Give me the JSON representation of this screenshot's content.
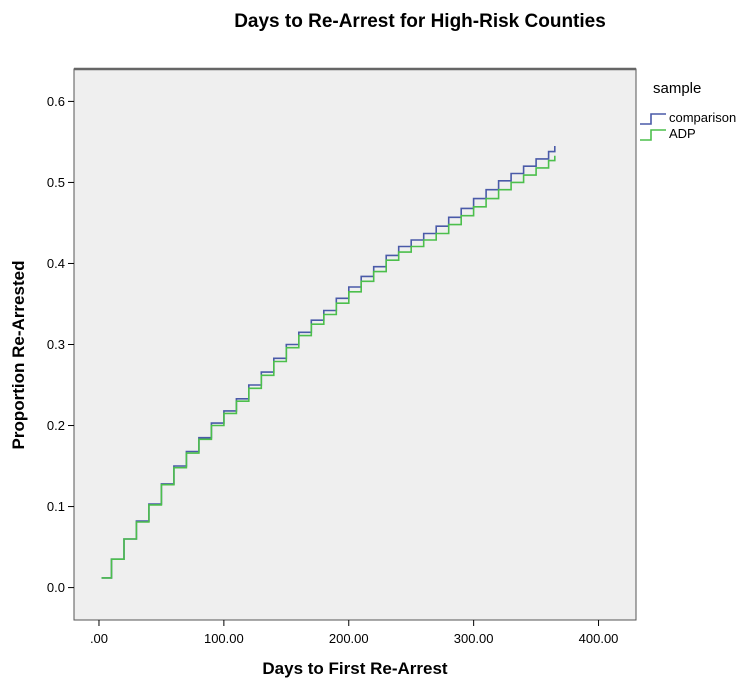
{
  "chart_data": {
    "type": "line",
    "step": true,
    "title": "Days to Re-Arrest for High-Risk Counties",
    "xlabel": "Days to First Re-Arrest",
    "ylabel": "Proportion Re-Arrested",
    "xlim": [
      -20,
      430
    ],
    "ylim": [
      -0.04,
      0.64
    ],
    "xticks": [
      0,
      100,
      200,
      300,
      400
    ],
    "xtick_labels": [
      ".00",
      "100.00",
      "200.00",
      "300.00",
      "400.00"
    ],
    "yticks": [
      0.0,
      0.1,
      0.2,
      0.3,
      0.4,
      0.5,
      0.6
    ],
    "ytick_labels": [
      "0.0",
      "0.1",
      "0.2",
      "0.3",
      "0.4",
      "0.5",
      "0.6"
    ],
    "grid": false,
    "plot_background": "#efefef",
    "legend": {
      "title": "sample",
      "position": "top-right-outside"
    },
    "series": [
      {
        "name": "comparison",
        "color": "#4a5aa8",
        "x": [
          2,
          10,
          20,
          30,
          40,
          50,
          60,
          70,
          80,
          90,
          100,
          110,
          120,
          130,
          140,
          150,
          160,
          170,
          180,
          190,
          200,
          210,
          220,
          230,
          240,
          250,
          260,
          270,
          280,
          290,
          300,
          310,
          320,
          330,
          340,
          350,
          360,
          365
        ],
        "y": [
          0.012,
          0.035,
          0.06,
          0.082,
          0.103,
          0.128,
          0.15,
          0.168,
          0.185,
          0.203,
          0.218,
          0.233,
          0.25,
          0.266,
          0.283,
          0.3,
          0.315,
          0.33,
          0.342,
          0.357,
          0.371,
          0.384,
          0.396,
          0.41,
          0.421,
          0.429,
          0.437,
          0.446,
          0.457,
          0.468,
          0.48,
          0.491,
          0.502,
          0.511,
          0.52,
          0.529,
          0.538,
          0.545
        ]
      },
      {
        "name": "ADP",
        "color": "#4cbf4c",
        "x": [
          2,
          10,
          20,
          30,
          40,
          50,
          60,
          70,
          80,
          90,
          100,
          110,
          120,
          130,
          140,
          150,
          160,
          170,
          180,
          190,
          200,
          210,
          220,
          230,
          240,
          250,
          260,
          270,
          280,
          290,
          300,
          310,
          320,
          330,
          340,
          350,
          360,
          365
        ],
        "y": [
          0.012,
          0.035,
          0.06,
          0.081,
          0.102,
          0.127,
          0.148,
          0.166,
          0.183,
          0.2,
          0.215,
          0.23,
          0.246,
          0.262,
          0.279,
          0.296,
          0.311,
          0.325,
          0.337,
          0.351,
          0.365,
          0.378,
          0.39,
          0.404,
          0.414,
          0.421,
          0.429,
          0.437,
          0.448,
          0.459,
          0.47,
          0.48,
          0.491,
          0.5,
          0.509,
          0.518,
          0.527,
          0.533
        ]
      }
    ]
  }
}
